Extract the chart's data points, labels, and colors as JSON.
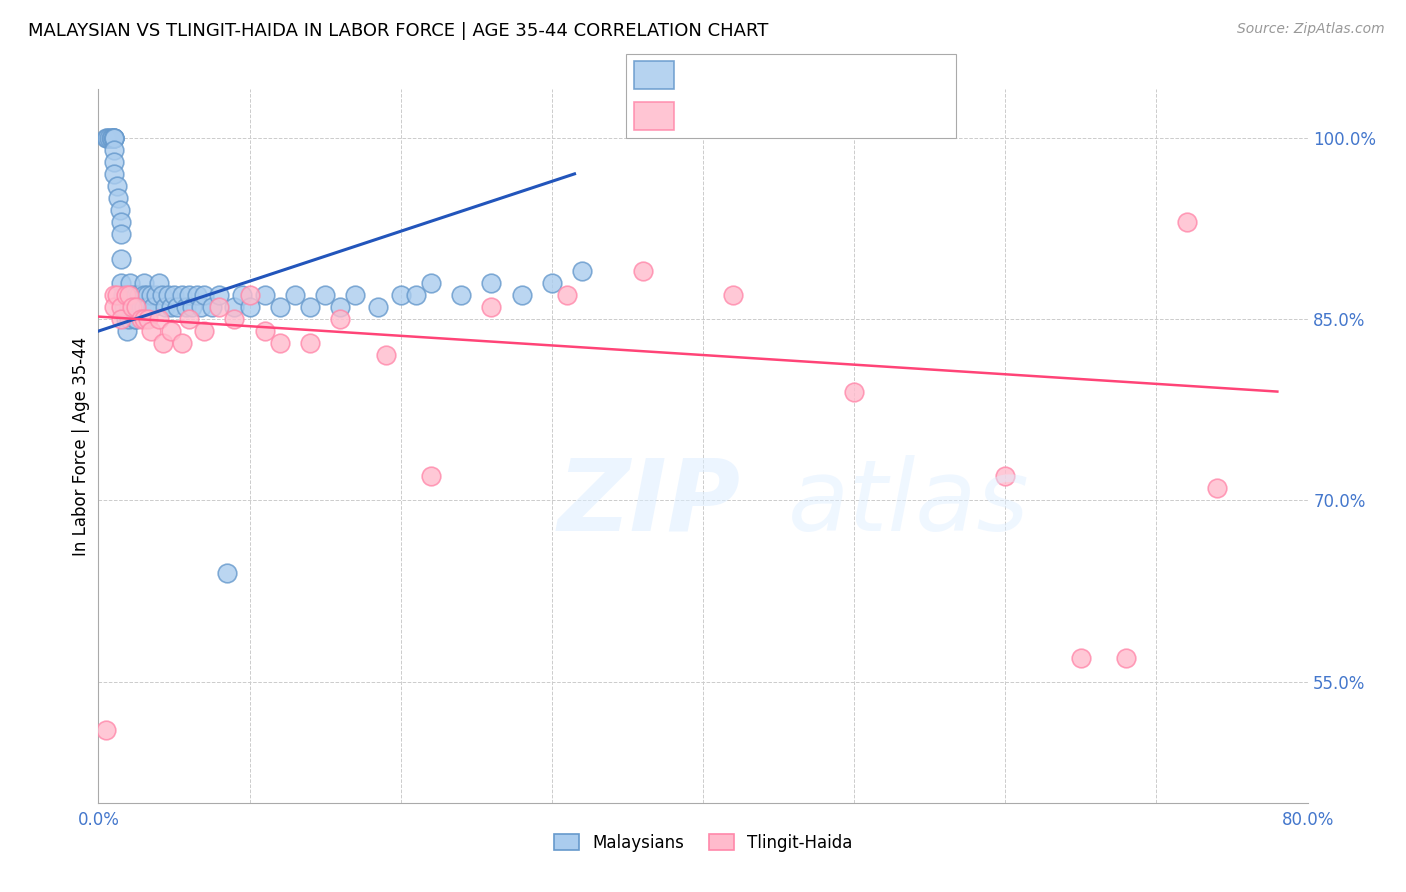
{
  "title": "MALAYSIAN VS TLINGIT-HAIDA IN LABOR FORCE | AGE 35-44 CORRELATION CHART",
  "source": "Source: ZipAtlas.com",
  "ylabel": "In Labor Force | Age 35-44",
  "xlim": [
    0.0,
    0.8
  ],
  "ylim": [
    0.45,
    1.04
  ],
  "ytick_vals": [
    0.55,
    0.7,
    0.85,
    1.0
  ],
  "ytick_labels": [
    "55.0%",
    "70.0%",
    "85.0%",
    "100.0%"
  ],
  "xtick_vals": [
    0.0,
    0.1,
    0.2,
    0.3,
    0.4,
    0.5,
    0.6,
    0.7,
    0.8
  ],
  "xtick_labels": [
    "0.0%",
    "",
    "",
    "",
    "",
    "",
    "",
    "",
    "80.0%"
  ],
  "blue_face": "#AACCEE",
  "blue_edge": "#6699CC",
  "pink_face": "#FFBBCC",
  "pink_edge": "#FF88AA",
  "trend_blue_color": "#2255BB",
  "trend_pink_color": "#FF4477",
  "axis_label_color": "#4477CC",
  "grid_color": "#CCCCCC",
  "malaysian_x": [
    0.005,
    0.006,
    0.007,
    0.008,
    0.009,
    0.01,
    0.01,
    0.01,
    0.01,
    0.01,
    0.01,
    0.01,
    0.012,
    0.013,
    0.014,
    0.015,
    0.015,
    0.015,
    0.015,
    0.016,
    0.017,
    0.018,
    0.019,
    0.02,
    0.02,
    0.02,
    0.021,
    0.022,
    0.023,
    0.024,
    0.025,
    0.025,
    0.025,
    0.027,
    0.028,
    0.03,
    0.03,
    0.03,
    0.032,
    0.033,
    0.035,
    0.036,
    0.038,
    0.04,
    0.042,
    0.044,
    0.046,
    0.048,
    0.05,
    0.052,
    0.055,
    0.058,
    0.06,
    0.062,
    0.065,
    0.068,
    0.07,
    0.075,
    0.08,
    0.085,
    0.09,
    0.095,
    0.1,
    0.11,
    0.12,
    0.13,
    0.14,
    0.15,
    0.16,
    0.17,
    0.185,
    0.2,
    0.21,
    0.22,
    0.24,
    0.26,
    0.28,
    0.3,
    0.32
  ],
  "malaysian_y": [
    1.0,
    1.0,
    1.0,
    1.0,
    1.0,
    1.0,
    1.0,
    1.0,
    1.0,
    0.99,
    0.98,
    0.97,
    0.96,
    0.95,
    0.94,
    0.93,
    0.92,
    0.9,
    0.88,
    0.87,
    0.86,
    0.85,
    0.84,
    0.87,
    0.86,
    0.85,
    0.88,
    0.87,
    0.86,
    0.85,
    0.87,
    0.86,
    0.85,
    0.87,
    0.86,
    0.88,
    0.87,
    0.86,
    0.87,
    0.86,
    0.87,
    0.86,
    0.87,
    0.88,
    0.87,
    0.86,
    0.87,
    0.86,
    0.87,
    0.86,
    0.87,
    0.86,
    0.87,
    0.86,
    0.87,
    0.86,
    0.87,
    0.86,
    0.87,
    0.64,
    0.86,
    0.87,
    0.86,
    0.87,
    0.86,
    0.87,
    0.86,
    0.87,
    0.86,
    0.87,
    0.86,
    0.87,
    0.87,
    0.88,
    0.87,
    0.88,
    0.87,
    0.88,
    0.89
  ],
  "tlingit_x": [
    0.005,
    0.01,
    0.01,
    0.012,
    0.015,
    0.015,
    0.018,
    0.02,
    0.022,
    0.025,
    0.028,
    0.03,
    0.033,
    0.035,
    0.04,
    0.043,
    0.048,
    0.055,
    0.06,
    0.07,
    0.08,
    0.09,
    0.1,
    0.11,
    0.12,
    0.14,
    0.16,
    0.19,
    0.22,
    0.26,
    0.31,
    0.36,
    0.42,
    0.5,
    0.6,
    0.65,
    0.68,
    0.72,
    0.74
  ],
  "tlingit_y": [
    0.51,
    0.87,
    0.86,
    0.87,
    0.86,
    0.85,
    0.87,
    0.87,
    0.86,
    0.86,
    0.85,
    0.85,
    0.85,
    0.84,
    0.85,
    0.83,
    0.84,
    0.83,
    0.85,
    0.84,
    0.86,
    0.85,
    0.87,
    0.84,
    0.83,
    0.83,
    0.85,
    0.82,
    0.72,
    0.86,
    0.87,
    0.89,
    0.87,
    0.79,
    0.72,
    0.57,
    0.57,
    0.93,
    0.71
  ],
  "blue_trend_x": [
    0.0,
    0.315
  ],
  "blue_trend_y": [
    0.84,
    0.97
  ],
  "pink_trend_x": [
    0.0,
    0.78
  ],
  "pink_trend_y": [
    0.852,
    0.79
  ]
}
